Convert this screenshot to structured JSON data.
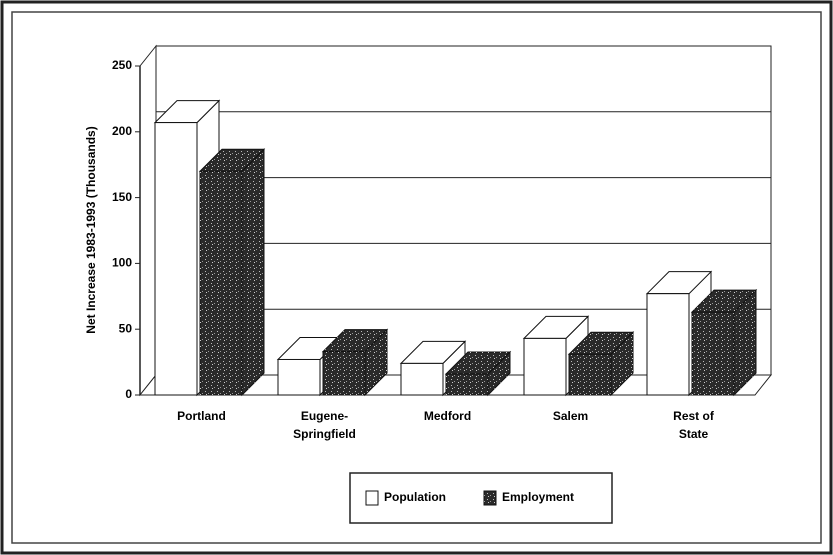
{
  "chart_data": {
    "type": "bar3d",
    "y_axis_label": "Net Increase 1983-1993 (Thousands)",
    "categories": [
      "Portland",
      "Eugene-Springfield",
      "Medford",
      "Salem",
      "Rest of State"
    ],
    "series": [
      {
        "name": "Population",
        "color": "#ffffff",
        "values": [
          207,
          27,
          24,
          43,
          77
        ]
      },
      {
        "name": "Employment",
        "color": "#2a2a2a",
        "values": [
          170,
          33,
          16,
          31,
          63
        ]
      }
    ],
    "ylim": [
      0,
      250
    ],
    "yticks": [
      0,
      50,
      100,
      150,
      200,
      250
    ],
    "grid": true,
    "legend": "bottom"
  }
}
